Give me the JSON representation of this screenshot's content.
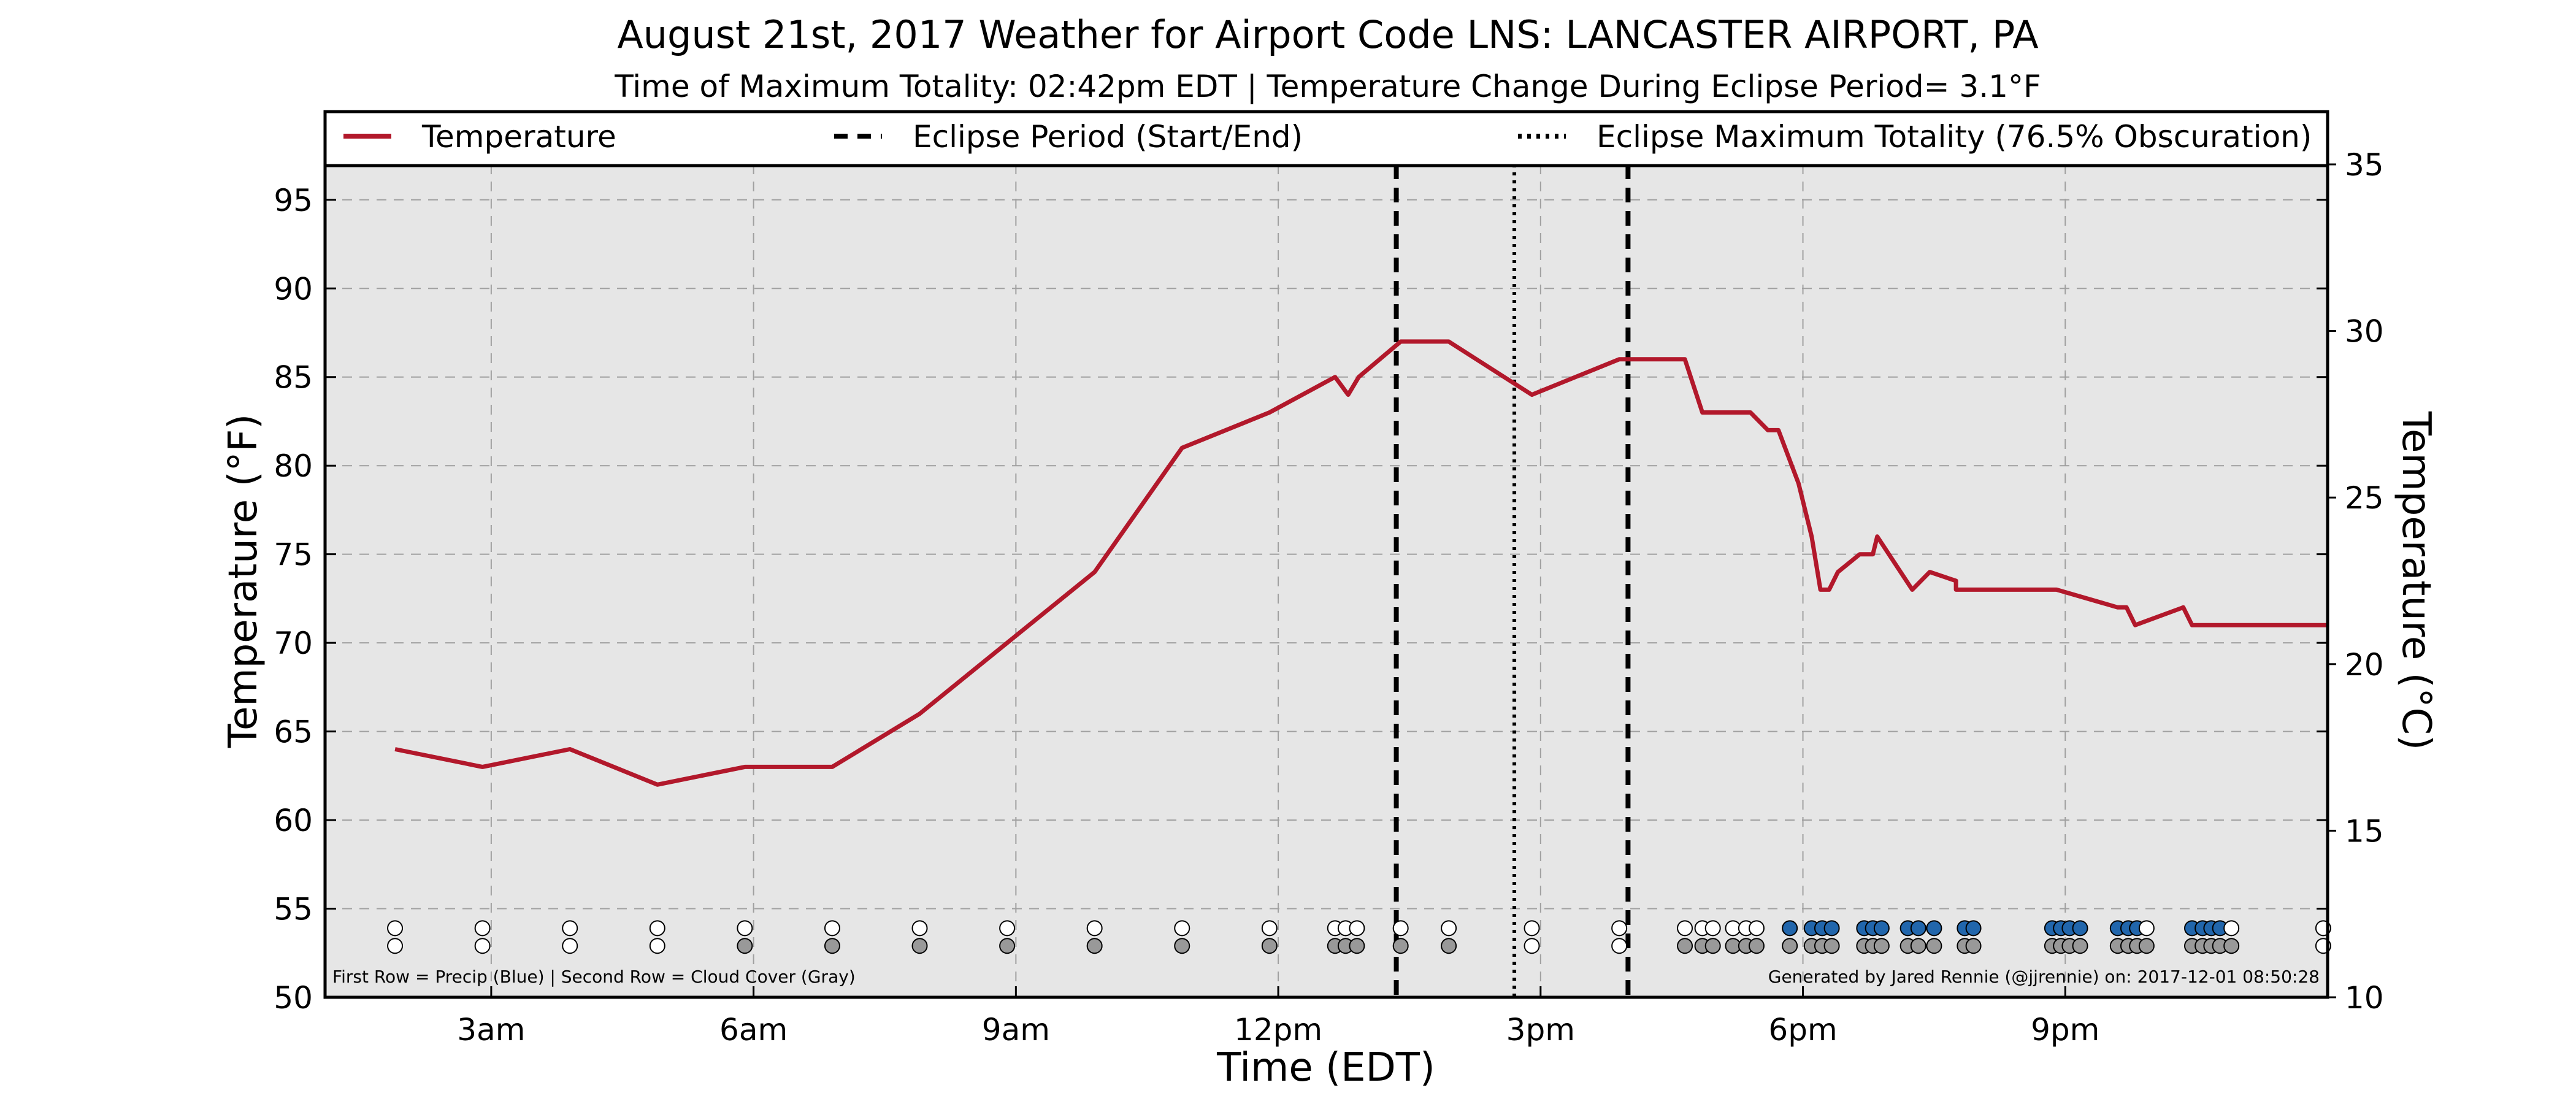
{
  "chart_data": {
    "type": "line",
    "title": "August 21st, 2017 Weather for Airport Code LNS: LANCASTER AIRPORT, PA",
    "subtitle": "Time of Maximum Totality: 02:42pm EDT | Temperature Change During Eclipse Period= 3.1°F",
    "xlabel": "Time (EDT)",
    "ylabel": "Temperature (°F)",
    "ylabel_right": "Temperature (°C)",
    "xlim": [
      1.1,
      24.0
    ],
    "ylim": [
      50,
      97
    ],
    "ylim_right": [
      10,
      35
    ],
    "grid": true,
    "x_ticks": [
      {
        "x": 3,
        "label": "3am"
      },
      {
        "x": 6,
        "label": "6am"
      },
      {
        "x": 9,
        "label": "9am"
      },
      {
        "x": 12,
        "label": "12pm"
      },
      {
        "x": 15,
        "label": "3pm"
      },
      {
        "x": 18,
        "label": "6pm"
      },
      {
        "x": 21,
        "label": "9pm"
      }
    ],
    "y_ticks": [
      50,
      55,
      60,
      65,
      70,
      75,
      80,
      85,
      90,
      95
    ],
    "y_ticks_right": [
      10,
      15,
      20,
      25,
      30,
      35
    ],
    "legend": {
      "placement": "top",
      "entries": [
        {
          "label": "Temperature",
          "style": "solid"
        },
        {
          "label": "Eclipse Period (Start/End)",
          "style": "dashed"
        },
        {
          "label": "Eclipse Maximum Totality (76.5% Obscuration)",
          "style": "dotted"
        }
      ]
    },
    "series": [
      {
        "name": "Temperature",
        "color": "#b2182b",
        "x": [
          1.9,
          2.9,
          3.9,
          4.9,
          5.9,
          6.9,
          7.9,
          8.9,
          9.9,
          10.9,
          11.9,
          12.65,
          12.8,
          12.92,
          13.4,
          13.95,
          14.9,
          15.9,
          16.65,
          16.85,
          17.4,
          17.6,
          17.72,
          17.95,
          18.1,
          18.2,
          18.3,
          18.4,
          18.65,
          18.8,
          18.85,
          19.25,
          19.45,
          19.75,
          19.75,
          20.9,
          21.6,
          21.7,
          21.8,
          22.35,
          22.45,
          24.0
        ],
        "y": [
          64,
          63,
          64,
          62,
          63,
          63,
          66,
          70,
          74,
          81,
          83,
          85,
          84,
          85,
          87,
          87,
          84,
          86,
          86,
          83,
          83,
          82,
          82,
          79,
          76,
          73,
          73,
          74,
          75,
          75,
          76,
          73,
          74,
          73.5,
          73,
          73,
          72,
          72,
          71,
          72,
          71,
          71
        ]
      }
    ],
    "eclipse_period": [
      13.35,
      16.0
    ],
    "max_totality": 14.7,
    "precip_row": [
      {
        "x": 1.9,
        "c": "w"
      },
      {
        "x": 2.9,
        "c": "w"
      },
      {
        "x": 3.9,
        "c": "w"
      },
      {
        "x": 4.9,
        "c": "w"
      },
      {
        "x": 5.9,
        "c": "w"
      },
      {
        "x": 6.9,
        "c": "w"
      },
      {
        "x": 7.9,
        "c": "w"
      },
      {
        "x": 8.9,
        "c": "w"
      },
      {
        "x": 9.9,
        "c": "w"
      },
      {
        "x": 10.9,
        "c": "w"
      },
      {
        "x": 11.9,
        "c": "w"
      },
      {
        "x": 12.65,
        "c": "w"
      },
      {
        "x": 12.77,
        "c": "w"
      },
      {
        "x": 12.9,
        "c": "w"
      },
      {
        "x": 13.4,
        "c": "w"
      },
      {
        "x": 13.95,
        "c": "w"
      },
      {
        "x": 14.9,
        "c": "w"
      },
      {
        "x": 15.9,
        "c": "w"
      },
      {
        "x": 16.65,
        "c": "w"
      },
      {
        "x": 16.85,
        "c": "w"
      },
      {
        "x": 16.97,
        "c": "w"
      },
      {
        "x": 17.2,
        "c": "w"
      },
      {
        "x": 17.35,
        "c": "w"
      },
      {
        "x": 17.47,
        "c": "w"
      },
      {
        "x": 17.85,
        "c": "b"
      },
      {
        "x": 18.1,
        "c": "b"
      },
      {
        "x": 18.22,
        "c": "b"
      },
      {
        "x": 18.33,
        "c": "b"
      },
      {
        "x": 18.7,
        "c": "b"
      },
      {
        "x": 18.8,
        "c": "b"
      },
      {
        "x": 18.9,
        "c": "b"
      },
      {
        "x": 19.2,
        "c": "b"
      },
      {
        "x": 19.32,
        "c": "b"
      },
      {
        "x": 19.5,
        "c": "b"
      },
      {
        "x": 19.85,
        "c": "b"
      },
      {
        "x": 19.95,
        "c": "b"
      },
      {
        "x": 20.85,
        "c": "b"
      },
      {
        "x": 20.95,
        "c": "b"
      },
      {
        "x": 21.05,
        "c": "b"
      },
      {
        "x": 21.17,
        "c": "b"
      },
      {
        "x": 21.6,
        "c": "b"
      },
      {
        "x": 21.72,
        "c": "b"
      },
      {
        "x": 21.82,
        "c": "b"
      },
      {
        "x": 21.93,
        "c": "w"
      },
      {
        "x": 22.45,
        "c": "b"
      },
      {
        "x": 22.57,
        "c": "b"
      },
      {
        "x": 22.67,
        "c": "b"
      },
      {
        "x": 22.77,
        "c": "b"
      },
      {
        "x": 22.9,
        "c": "w"
      },
      {
        "x": 23.95,
        "c": "w"
      }
    ],
    "cloud_row": [
      {
        "x": 1.9,
        "c": "w"
      },
      {
        "x": 2.9,
        "c": "w"
      },
      {
        "x": 3.9,
        "c": "w"
      },
      {
        "x": 4.9,
        "c": "w"
      },
      {
        "x": 5.9,
        "c": "g"
      },
      {
        "x": 6.9,
        "c": "g"
      },
      {
        "x": 7.9,
        "c": "g"
      },
      {
        "x": 8.9,
        "c": "g"
      },
      {
        "x": 9.9,
        "c": "g"
      },
      {
        "x": 10.9,
        "c": "g"
      },
      {
        "x": 11.9,
        "c": "g"
      },
      {
        "x": 12.65,
        "c": "g"
      },
      {
        "x": 12.77,
        "c": "g"
      },
      {
        "x": 12.9,
        "c": "g"
      },
      {
        "x": 13.4,
        "c": "g"
      },
      {
        "x": 13.95,
        "c": "g"
      },
      {
        "x": 14.9,
        "c": "w"
      },
      {
        "x": 15.9,
        "c": "w"
      },
      {
        "x": 16.65,
        "c": "g"
      },
      {
        "x": 16.85,
        "c": "g"
      },
      {
        "x": 16.97,
        "c": "g"
      },
      {
        "x": 17.2,
        "c": "g"
      },
      {
        "x": 17.35,
        "c": "g"
      },
      {
        "x": 17.47,
        "c": "g"
      },
      {
        "x": 17.85,
        "c": "g"
      },
      {
        "x": 18.1,
        "c": "g"
      },
      {
        "x": 18.22,
        "c": "g"
      },
      {
        "x": 18.33,
        "c": "g"
      },
      {
        "x": 18.7,
        "c": "g"
      },
      {
        "x": 18.8,
        "c": "g"
      },
      {
        "x": 18.9,
        "c": "g"
      },
      {
        "x": 19.2,
        "c": "g"
      },
      {
        "x": 19.32,
        "c": "g"
      },
      {
        "x": 19.5,
        "c": "g"
      },
      {
        "x": 19.85,
        "c": "g"
      },
      {
        "x": 19.95,
        "c": "g"
      },
      {
        "x": 20.85,
        "c": "g"
      },
      {
        "x": 20.95,
        "c": "g"
      },
      {
        "x": 21.05,
        "c": "g"
      },
      {
        "x": 21.17,
        "c": "g"
      },
      {
        "x": 21.6,
        "c": "g"
      },
      {
        "x": 21.72,
        "c": "g"
      },
      {
        "x": 21.82,
        "c": "g"
      },
      {
        "x": 21.93,
        "c": "g"
      },
      {
        "x": 22.45,
        "c": "g"
      },
      {
        "x": 22.57,
        "c": "g"
      },
      {
        "x": 22.67,
        "c": "g"
      },
      {
        "x": 22.77,
        "c": "g"
      },
      {
        "x": 22.9,
        "c": "g"
      },
      {
        "x": 23.95,
        "c": "w"
      }
    ],
    "footnote_left": "First Row = Precip (Blue) | Second Row = Cloud Cover (Gray)",
    "footnote_right": "Generated by Jared Rennie (@jjrennie) on: 2017-12-01 08:50:28"
  },
  "colors": {
    "temperature": "#b2182b",
    "plot_background": "#e6e6e6",
    "precip": "#2166ac",
    "cloud": "#999999",
    "empty": "#ffffff",
    "grid": "#a0a0a0"
  }
}
